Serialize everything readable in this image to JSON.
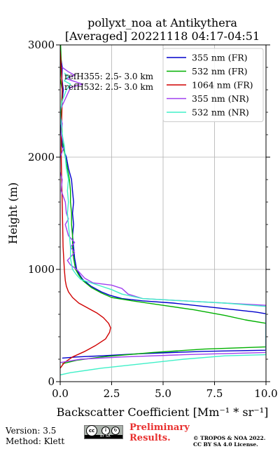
{
  "chart_data": {
    "type": "line",
    "title_line1": "pollyxt_noa at Antikythera",
    "title_line2": "[Averaged] 20221118 04:17-04:51",
    "xlabel": "Backscatter Coefficient [Mm⁻¹ * sr⁻¹]",
    "ylabel": "Height (m)",
    "xlim": [
      0,
      10
    ],
    "ylim": [
      0,
      3000
    ],
    "xticks": [
      "0.0",
      "2.5",
      "5.0",
      "7.5",
      "10.0"
    ],
    "yticks": [
      "0",
      "1000",
      "2000",
      "3000"
    ],
    "grid": true,
    "legend_position": "top-right",
    "annotations": [
      "refH355:  2.5- 3.0 km",
      "refH532:  2.5- 3.0 km"
    ],
    "series": [
      {
        "name": "355 nm (FR)",
        "color": "#0000cc",
        "points": [
          [
            0.0,
            3000
          ],
          [
            0.02,
            2900
          ],
          [
            0.1,
            2800
          ],
          [
            0.08,
            2700
          ],
          [
            0.15,
            2600
          ],
          [
            0.1,
            2500
          ],
          [
            0.05,
            2400
          ],
          [
            0.0,
            2300
          ],
          [
            0.05,
            2200
          ],
          [
            0.1,
            2100
          ],
          [
            0.3,
            2000
          ],
          [
            0.4,
            1900
          ],
          [
            0.55,
            1800
          ],
          [
            0.6,
            1700
          ],
          [
            0.65,
            1600
          ],
          [
            0.6,
            1500
          ],
          [
            0.65,
            1400
          ],
          [
            0.6,
            1300
          ],
          [
            0.65,
            1200
          ],
          [
            0.7,
            1100
          ],
          [
            0.8,
            1000
          ],
          [
            0.95,
            950
          ],
          [
            1.1,
            910
          ],
          [
            1.5,
            850
          ],
          [
            2.0,
            800
          ],
          [
            2.4,
            770
          ],
          [
            3.0,
            740
          ],
          [
            4.0,
            720
          ],
          [
            5.5,
            700
          ],
          [
            7.0,
            670
          ],
          [
            8.5,
            640
          ],
          [
            9.5,
            620
          ],
          [
            10.0,
            605
          ],
          [
            10.0,
            280
          ],
          [
            7.0,
            270
          ],
          [
            4.0,
            250
          ],
          [
            2.0,
            230
          ],
          [
            0.8,
            220
          ],
          [
            0.1,
            210
          ]
        ]
      },
      {
        "name": "532 nm (FR)",
        "color": "#00b000",
        "points": [
          [
            0.02,
            3000
          ],
          [
            0.05,
            2850
          ],
          [
            0.0,
            2700
          ],
          [
            0.1,
            2600
          ],
          [
            0.05,
            2400
          ],
          [
            0.1,
            2200
          ],
          [
            0.15,
            2100
          ],
          [
            0.25,
            2000
          ],
          [
            0.35,
            1900
          ],
          [
            0.45,
            1800
          ],
          [
            0.5,
            1700
          ],
          [
            0.5,
            1600
          ],
          [
            0.55,
            1500
          ],
          [
            0.55,
            1400
          ],
          [
            0.6,
            1300
          ],
          [
            0.6,
            1200
          ],
          [
            0.65,
            1100
          ],
          [
            0.75,
            1000
          ],
          [
            0.9,
            950
          ],
          [
            1.1,
            900
          ],
          [
            1.5,
            840
          ],
          [
            2.0,
            790
          ],
          [
            2.5,
            750
          ],
          [
            3.5,
            720
          ],
          [
            5.0,
            680
          ],
          [
            6.5,
            640
          ],
          [
            8.0,
            590
          ],
          [
            9.0,
            550
          ],
          [
            10.0,
            520
          ],
          [
            10.0,
            310
          ],
          [
            7.0,
            290
          ],
          [
            4.5,
            260
          ],
          [
            2.0,
            220
          ],
          [
            0.8,
            190
          ],
          [
            0.1,
            160
          ]
        ]
      },
      {
        "name": "1064 nm (FR)",
        "color": "#d00000",
        "points": [
          [
            0.0,
            2950
          ],
          [
            0.05,
            2800
          ],
          [
            0.1,
            2600
          ],
          [
            0.08,
            2400
          ],
          [
            0.05,
            2200
          ],
          [
            0.05,
            2000
          ],
          [
            0.07,
            1800
          ],
          [
            0.1,
            1600
          ],
          [
            0.12,
            1400
          ],
          [
            0.14,
            1200
          ],
          [
            0.17,
            1100
          ],
          [
            0.2,
            1000
          ],
          [
            0.25,
            900
          ],
          [
            0.3,
            850
          ],
          [
            0.4,
            800
          ],
          [
            0.6,
            750
          ],
          [
            0.9,
            700
          ],
          [
            1.3,
            660
          ],
          [
            1.8,
            610
          ],
          [
            2.1,
            570
          ],
          [
            2.35,
            520
          ],
          [
            2.45,
            480
          ],
          [
            2.4,
            440
          ],
          [
            2.2,
            380
          ],
          [
            1.7,
            320
          ],
          [
            1.2,
            270
          ],
          [
            0.6,
            220
          ],
          [
            0.2,
            170
          ],
          [
            0.0,
            120
          ],
          [
            -0.05,
            80
          ]
        ]
      },
      {
        "name": "355 nm (NR)",
        "color": "#a040f0",
        "points": [
          [
            0.1,
            2800
          ],
          [
            0.4,
            2760
          ],
          [
            0.7,
            2730
          ],
          [
            0.3,
            2700
          ],
          [
            0.6,
            2680
          ],
          [
            1.1,
            2650
          ],
          [
            0.5,
            2620
          ],
          [
            0.2,
            2500
          ],
          [
            -0.05,
            2400
          ],
          [
            0.1,
            2300
          ],
          [
            0.05,
            2200
          ],
          [
            0.2,
            2100
          ],
          [
            0.0,
            2000
          ],
          [
            -0.05,
            1900
          ],
          [
            0.1,
            1800
          ],
          [
            0.05,
            1700
          ],
          [
            0.25,
            1600
          ],
          [
            0.3,
            1500
          ],
          [
            0.4,
            1450
          ],
          [
            0.25,
            1400
          ],
          [
            0.4,
            1300
          ],
          [
            0.7,
            1240
          ],
          [
            0.5,
            1200
          ],
          [
            0.7,
            1150
          ],
          [
            0.35,
            1080
          ],
          [
            0.5,
            1040
          ],
          [
            0.8,
            1000
          ],
          [
            1.2,
            920
          ],
          [
            1.6,
            880
          ],
          [
            2.5,
            860
          ],
          [
            3.0,
            830
          ],
          [
            3.3,
            780
          ],
          [
            4.0,
            740
          ],
          [
            6.0,
            720
          ],
          [
            8.0,
            700
          ],
          [
            10.0,
            680
          ],
          [
            10.0,
            260
          ],
          [
            6.0,
            240
          ],
          [
            3.0,
            220
          ],
          [
            1.0,
            200
          ],
          [
            0.0,
            170
          ]
        ]
      },
      {
        "name": "532 nm (NR)",
        "color": "#40f0c8",
        "points": [
          [
            0.2,
            2750
          ],
          [
            0.4,
            2720
          ],
          [
            0.2,
            2680
          ],
          [
            0.5,
            2650
          ],
          [
            0.3,
            2600
          ],
          [
            0.1,
            2500
          ],
          [
            0.0,
            2400
          ],
          [
            0.05,
            2300
          ],
          [
            0.1,
            2200
          ],
          [
            0.2,
            2100
          ],
          [
            0.25,
            2000
          ],
          [
            0.3,
            1900
          ],
          [
            0.4,
            1800
          ],
          [
            0.35,
            1700
          ],
          [
            0.4,
            1600
          ],
          [
            0.35,
            1500
          ],
          [
            0.4,
            1400
          ],
          [
            0.45,
            1300
          ],
          [
            0.5,
            1200
          ],
          [
            0.5,
            1100
          ],
          [
            0.6,
            1000
          ],
          [
            0.8,
            950
          ],
          [
            1.0,
            910
          ],
          [
            1.5,
            880
          ],
          [
            2.0,
            850
          ],
          [
            2.5,
            820
          ],
          [
            3.0,
            780
          ],
          [
            4.0,
            740
          ],
          [
            6.0,
            720
          ],
          [
            8.0,
            700
          ],
          [
            10.0,
            670
          ],
          [
            10.0,
            240
          ],
          [
            8.0,
            230
          ],
          [
            6.0,
            200
          ],
          [
            4.0,
            160
          ],
          [
            2.0,
            120
          ],
          [
            0.5,
            80
          ],
          [
            0.0,
            60
          ]
        ]
      }
    ]
  },
  "footer": {
    "version": "Version: 3.5",
    "method": "Method: Klett",
    "license_badge_text": "BY SA",
    "preliminary_line1": "Preliminary",
    "preliminary_line2": "Results.",
    "copyright_line1": "© TROPOS & NOA 2022.",
    "copyright_line2": "CC BY SA 4.0 License."
  }
}
